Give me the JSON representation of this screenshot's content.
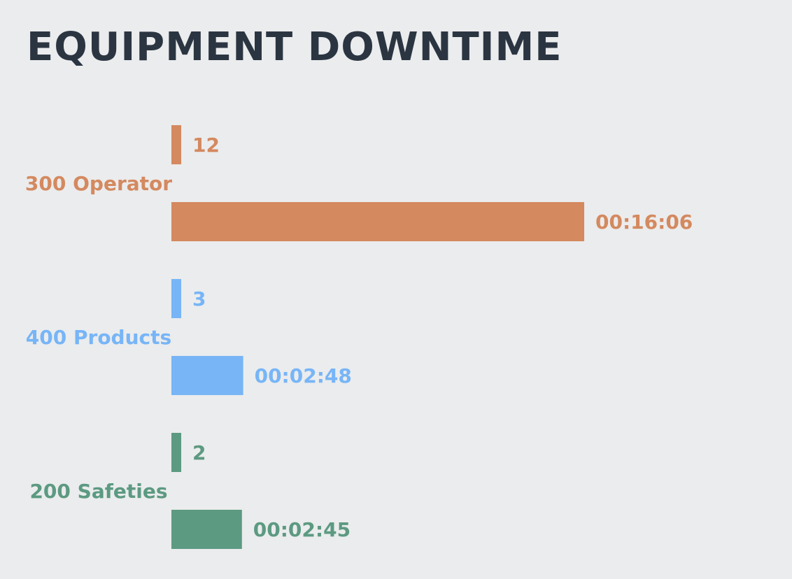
{
  "title": "EQUIPMENT DOWNTIME",
  "chart_data": {
    "type": "bar",
    "orientation": "horizontal",
    "title": "EQUIPMENT DOWNTIME",
    "categories": [
      "300 Operator",
      "400 Products",
      "200 Safeties"
    ],
    "series": [
      {
        "values": [
          12,
          3,
          2
        ],
        "labels": [
          "12",
          "3",
          "2"
        ]
      },
      {
        "values": [
          966,
          168,
          165
        ],
        "labels": [
          "00:16:06",
          "00:02:48",
          "00:02:45"
        ]
      }
    ],
    "colors": [
      "#d4895f",
      "#77b5f7",
      "#5c9a82"
    ],
    "xlabel": "",
    "ylabel": "",
    "grid": false,
    "legend": "none"
  }
}
